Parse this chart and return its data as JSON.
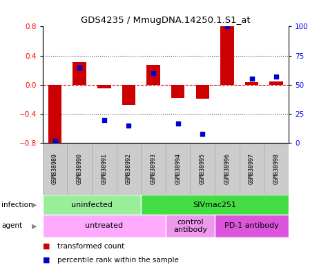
{
  "title": "GDS4235 / MmugDNA.14250.1.S1_at",
  "samples": [
    "GSM838989",
    "GSM838990",
    "GSM838991",
    "GSM838992",
    "GSM838993",
    "GSM838994",
    "GSM838995",
    "GSM838996",
    "GSM838997",
    "GSM838998"
  ],
  "transformed_count": [
    -0.82,
    0.31,
    -0.05,
    -0.28,
    0.27,
    -0.18,
    -0.19,
    0.8,
    0.04,
    0.05
  ],
  "percentile_rank": [
    2,
    65,
    20,
    15,
    60,
    17,
    8,
    100,
    55,
    57
  ],
  "ylim_left": [
    -0.8,
    0.8
  ],
  "ylim_right": [
    0,
    100
  ],
  "yticks_left": [
    -0.8,
    -0.4,
    0,
    0.4,
    0.8
  ],
  "yticks_right": [
    0,
    25,
    50,
    75,
    100
  ],
  "bar_color": "#cc0000",
  "dot_color": "#0000cc",
  "zero_line_color": "#cc0000",
  "dotted_line_color": "#555555",
  "infection_groups": [
    {
      "label": "uninfected",
      "start": 0,
      "end": 4,
      "color": "#99ee99"
    },
    {
      "label": "SIVmac251",
      "start": 4,
      "end": 10,
      "color": "#44dd44"
    }
  ],
  "agent_groups": [
    {
      "label": "untreated",
      "start": 0,
      "end": 5,
      "color": "#ffaaff"
    },
    {
      "label": "control\nantibody",
      "start": 5,
      "end": 7,
      "color": "#ee99ee"
    },
    {
      "label": "PD-1 antibody",
      "start": 7,
      "end": 10,
      "color": "#dd55dd"
    }
  ],
  "legend_items": [
    {
      "label": "transformed count",
      "color": "#cc0000"
    },
    {
      "label": "percentile rank within the sample",
      "color": "#0000cc"
    }
  ],
  "infection_label": "infection",
  "agent_label": "agent",
  "bg_color": "#ffffff",
  "bar_width": 0.55,
  "sample_box_color": "#cccccc",
  "sample_box_edge": "#aaaaaa"
}
